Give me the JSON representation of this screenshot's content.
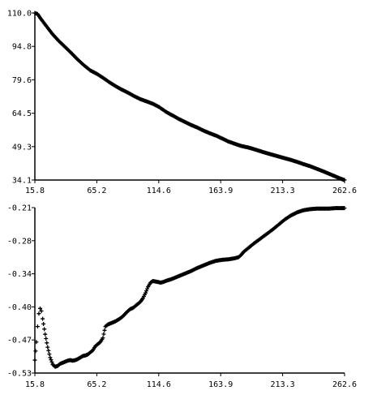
{
  "chart_data": [
    {
      "type": "scatter",
      "marker": "plus",
      "xlim": [
        15.8,
        262.6
      ],
      "ylim": [
        34.1,
        110.0
      ],
      "x_ticks": [
        "15.8",
        "65.2",
        "114.6",
        "163.9",
        "213.3",
        "262.6"
      ],
      "y_ticks": [
        "110.0",
        "94.8",
        "79.6",
        "64.5",
        "49.3",
        "34.1"
      ],
      "series": [
        {
          "values_xy": [
            [
              15.8,
              110.0
            ],
            [
              18,
              109.5
            ],
            [
              20,
              107.8
            ],
            [
              25,
              104.0
            ],
            [
              30,
              100.3
            ],
            [
              35,
              97.2
            ],
            [
              40,
              94.5
            ],
            [
              45,
              91.7
            ],
            [
              50,
              88.8
            ],
            [
              55,
              86.2
            ],
            [
              60,
              83.9
            ],
            [
              65,
              82.4
            ],
            [
              70,
              80.6
            ],
            [
              75,
              78.6
            ],
            [
              80,
              76.8
            ],
            [
              85,
              75.2
            ],
            [
              90,
              73.8
            ],
            [
              95,
              72.2
            ],
            [
              100,
              70.8
            ],
            [
              105,
              69.8
            ],
            [
              110,
              68.7
            ],
            [
              115,
              67.2
            ],
            [
              120,
              65.2
            ],
            [
              125,
              63.6
            ],
            [
              130,
              62.0
            ],
            [
              135,
              60.6
            ],
            [
              140,
              59.2
            ],
            [
              145,
              58.0
            ],
            [
              150,
              56.6
            ],
            [
              155,
              55.4
            ],
            [
              160,
              54.3
            ],
            [
              165,
              53.0
            ],
            [
              170,
              51.6
            ],
            [
              175,
              50.6
            ],
            [
              180,
              49.6
            ],
            [
              185,
              49.0
            ],
            [
              190,
              48.2
            ],
            [
              195,
              47.3
            ],
            [
              200,
              46.4
            ],
            [
              205,
              45.6
            ],
            [
              210,
              44.8
            ],
            [
              215,
              44.0
            ],
            [
              220,
              43.2
            ],
            [
              225,
              42.3
            ],
            [
              230,
              41.3
            ],
            [
              235,
              40.4
            ],
            [
              240,
              39.3
            ],
            [
              245,
              38.2
            ],
            [
              250,
              37.0
            ],
            [
              255,
              35.8
            ],
            [
              260,
              34.6
            ],
            [
              262.6,
              34.1
            ]
          ]
        }
      ]
    },
    {
      "type": "scatter",
      "marker": "plus",
      "xlim": [
        15.8,
        262.6
      ],
      "ylim": [
        -0.53,
        -0.21
      ],
      "x_ticks": [
        "15.8",
        "65.2",
        "114.6",
        "163.9",
        "213.3",
        "262.6"
      ],
      "y_ticks": [
        "-0.21",
        "-0.28",
        "-0.34",
        "-0.40",
        "-0.47",
        "-0.53"
      ],
      "series": [
        {
          "values_xy": [
            [
              15.8,
              -0.505
            ],
            [
              17,
              -0.47
            ],
            [
              18,
              -0.44
            ],
            [
              19,
              -0.415
            ],
            [
              20,
              -0.405
            ],
            [
              21,
              -0.41
            ],
            [
              22,
              -0.425
            ],
            [
              24,
              -0.455
            ],
            [
              26,
              -0.48
            ],
            [
              28,
              -0.5
            ],
            [
              30,
              -0.513
            ],
            [
              32,
              -0.518
            ],
            [
              34,
              -0.516
            ],
            [
              36,
              -0.512
            ],
            [
              38,
              -0.51
            ],
            [
              40,
              -0.508
            ],
            [
              42,
              -0.506
            ],
            [
              44,
              -0.505
            ],
            [
              46,
              -0.506
            ],
            [
              48,
              -0.505
            ],
            [
              50,
              -0.503
            ],
            [
              52,
              -0.5
            ],
            [
              54,
              -0.497
            ],
            [
              56,
              -0.496
            ],
            [
              58,
              -0.494
            ],
            [
              60,
              -0.49
            ],
            [
              62,
              -0.486
            ],
            [
              64,
              -0.478
            ],
            [
              66,
              -0.474
            ],
            [
              68,
              -0.47
            ],
            [
              70,
              -0.462
            ],
            [
              72,
              -0.44
            ],
            [
              74,
              -0.436
            ],
            [
              76,
              -0.434
            ],
            [
              78,
              -0.432
            ],
            [
              80,
              -0.43
            ],
            [
              82,
              -0.427
            ],
            [
              84,
              -0.424
            ],
            [
              86,
              -0.42
            ],
            [
              88,
              -0.415
            ],
            [
              90,
              -0.41
            ],
            [
              92,
              -0.406
            ],
            [
              94,
              -0.404
            ],
            [
              96,
              -0.4
            ],
            [
              98,
              -0.396
            ],
            [
              100,
              -0.392
            ],
            [
              102,
              -0.385
            ],
            [
              104,
              -0.375
            ],
            [
              106,
              -0.363
            ],
            [
              108,
              -0.355
            ],
            [
              110,
              -0.352
            ],
            [
              112,
              -0.353
            ],
            [
              114,
              -0.354
            ],
            [
              116,
              -0.355
            ],
            [
              118,
              -0.354
            ],
            [
              120,
              -0.352
            ],
            [
              125,
              -0.348
            ],
            [
              130,
              -0.343
            ],
            [
              135,
              -0.338
            ],
            [
              140,
              -0.333
            ],
            [
              145,
              -0.327
            ],
            [
              150,
              -0.322
            ],
            [
              155,
              -0.317
            ],
            [
              160,
              -0.313
            ],
            [
              165,
              -0.311
            ],
            [
              170,
              -0.31
            ],
            [
              175,
              -0.308
            ],
            [
              178,
              -0.306
            ],
            [
              180,
              -0.302
            ],
            [
              182,
              -0.296
            ],
            [
              185,
              -0.29
            ],
            [
              190,
              -0.28
            ],
            [
              195,
              -0.271
            ],
            [
              200,
              -0.262
            ],
            [
              205,
              -0.253
            ],
            [
              210,
              -0.243
            ],
            [
              215,
              -0.233
            ],
            [
              220,
              -0.225
            ],
            [
              225,
              -0.219
            ],
            [
              230,
              -0.215
            ],
            [
              235,
              -0.213
            ],
            [
              240,
              -0.212
            ],
            [
              245,
              -0.212
            ],
            [
              250,
              -0.212
            ],
            [
              255,
              -0.211
            ],
            [
              260,
              -0.211
            ],
            [
              262.6,
              -0.211
            ]
          ]
        }
      ]
    }
  ]
}
